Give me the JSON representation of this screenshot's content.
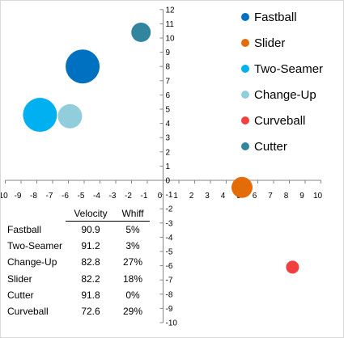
{
  "chart_data": {
    "type": "scatter",
    "title": "",
    "xlabel": "",
    "ylabel": "",
    "xlim": [
      -10,
      10
    ],
    "ylim": [
      -10,
      12
    ],
    "x_ticks": [
      -10,
      -9,
      -8,
      -7,
      -6,
      -5,
      -4,
      -3,
      -2,
      -1,
      0,
      1,
      2,
      3,
      4,
      5,
      6,
      7,
      8,
      9,
      10
    ],
    "y_ticks": [
      12,
      11,
      10,
      9,
      8,
      7,
      6,
      5,
      4,
      3,
      2,
      1,
      0,
      -1,
      -2,
      -3,
      -4,
      -5,
      -6,
      -7,
      -8,
      -9,
      -10
    ],
    "grid": false,
    "legend_position": "right",
    "series": [
      {
        "name": "Fastball",
        "color": "#0070C0",
        "x": -5.1,
        "y": 8.0,
        "bubble_size": 21
      },
      {
        "name": "Slider",
        "color": "#E36C09",
        "x": 5.0,
        "y": -0.5,
        "bubble_size": 13
      },
      {
        "name": "Two-Seamer",
        "color": "#00B0F0",
        "x": -7.8,
        "y": 4.6,
        "bubble_size": 21
      },
      {
        "name": "Change-Up",
        "color": "#92CDDC",
        "x": -5.9,
        "y": 4.5,
        "bubble_size": 15
      },
      {
        "name": "Curveball",
        "color": "#F04040",
        "x": 8.2,
        "y": -6.1,
        "bubble_size": 8
      },
      {
        "name": "Cutter",
        "color": "#31859C",
        "x": -1.4,
        "y": 10.4,
        "bubble_size": 12
      }
    ]
  },
  "stats_table": {
    "headers": [
      "",
      "Velocity",
      "Whiff"
    ],
    "rows": [
      {
        "pitch": "Fastball",
        "velocity": "90.9",
        "whiff": "5%"
      },
      {
        "pitch": "Two-Seamer",
        "velocity": "91.2",
        "whiff": "3%"
      },
      {
        "pitch": "Change-Up",
        "velocity": "82.8",
        "whiff": "27%"
      },
      {
        "pitch": "Slider",
        "velocity": "82.2",
        "whiff": "18%"
      },
      {
        "pitch": "Cutter",
        "velocity": "91.8",
        "whiff": "0%"
      },
      {
        "pitch": "Curveball",
        "velocity": "72.6",
        "whiff": "29%"
      }
    ]
  }
}
